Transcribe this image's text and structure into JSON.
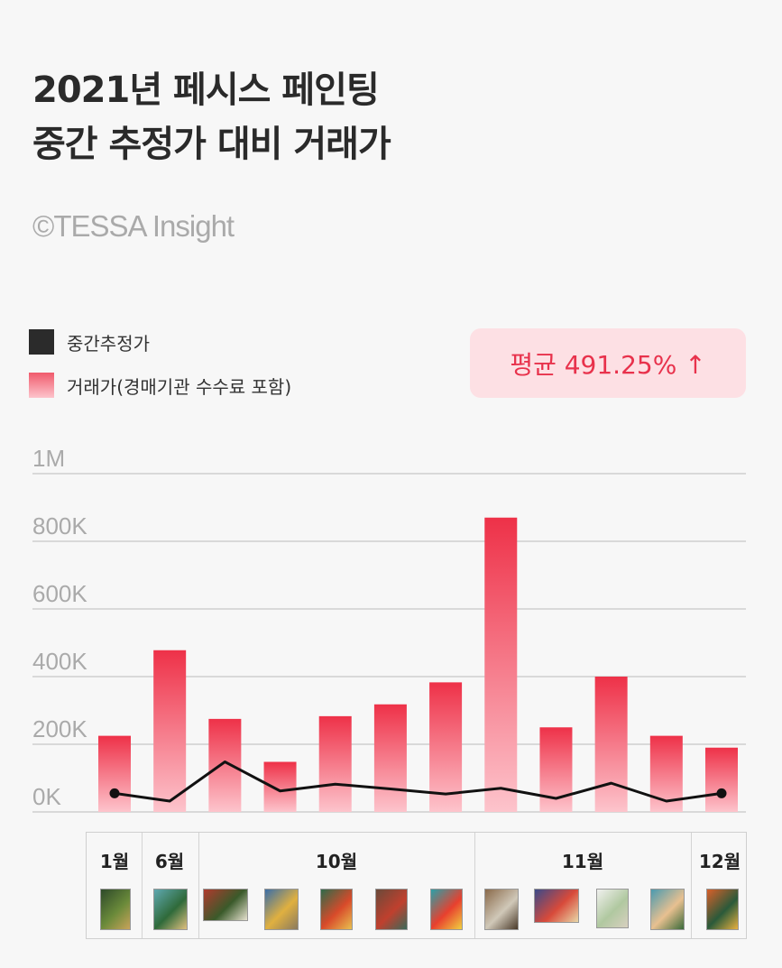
{
  "header": {
    "title_line1": "2021년 페시스 페인팅",
    "title_line2": "중간 추정가 대비 거래가",
    "copyright": "©TESSA Insight"
  },
  "legend": {
    "estimate_label": "중간추정가",
    "price_label": "거래가(경매기관 수수료 포함)"
  },
  "average_badge": "평균 491.25% ↑",
  "colors": {
    "bar_top": "#ee3148",
    "bar_bottom": "#fdc4cc",
    "line": "#111111",
    "badge_bg": "#fde0e4",
    "badge_text": "#e8324c",
    "grid": "#d9d9d9"
  },
  "chart_data": {
    "type": "bar",
    "y_tick_labels": [
      "0K",
      "200K",
      "400K",
      "600K",
      "800K",
      "1M"
    ],
    "ylim": [
      0,
      1000000
    ],
    "series": [
      {
        "name": "거래가(경매기관 수수료 포함)",
        "type": "bar",
        "values": [
          225000,
          478000,
          275000,
          148000,
          283000,
          318000,
          383000,
          870000,
          250000,
          400000,
          225000,
          190000
        ]
      },
      {
        "name": "중간추정가",
        "type": "line",
        "values": [
          55000,
          32000,
          148000,
          62000,
          82000,
          68000,
          53000,
          70000,
          40000,
          85000,
          32000,
          55000
        ]
      }
    ],
    "grid": true
  },
  "months": [
    "1월",
    "6월",
    "10월",
    "11월",
    "12월"
  ],
  "thumbnails": [
    {
      "icon": "painting-thumbnail",
      "colors": [
        "#2e4a2a",
        "#6a8a3a",
        "#c9a35a"
      ]
    },
    {
      "icon": "painting-thumbnail",
      "colors": [
        "#5fa8b0",
        "#2f6a3a",
        "#e0c080"
      ]
    },
    {
      "icon": "painting-thumbnail",
      "colors": [
        "#b03a2e",
        "#3a5a2a",
        "#e7e2d0"
      ]
    },
    {
      "icon": "painting-thumbnail",
      "colors": [
        "#3a6ea8",
        "#e0b040",
        "#8a7a60"
      ]
    },
    {
      "icon": "painting-thumbnail",
      "colors": [
        "#2e6a4a",
        "#d84a2a",
        "#e8c050"
      ]
    },
    {
      "icon": "painting-thumbnail",
      "colors": [
        "#6a4a3a",
        "#c0402e",
        "#3a6a5a"
      ]
    },
    {
      "icon": "painting-thumbnail",
      "colors": [
        "#2aa0a8",
        "#e8402e",
        "#f0d040"
      ]
    },
    {
      "icon": "painting-thumbnail",
      "colors": [
        "#8a6a4a",
        "#d0c8b8",
        "#4a3a2a"
      ]
    },
    {
      "icon": "painting-thumbnail",
      "colors": [
        "#3a4a8a",
        "#d84a3a",
        "#e8d8a8"
      ]
    },
    {
      "icon": "painting-thumbnail",
      "colors": [
        "#f0f0ee",
        "#b0c8a0",
        "#d8d0c0"
      ]
    },
    {
      "icon": "painting-thumbnail",
      "colors": [
        "#4a9ab0",
        "#e8c090",
        "#3a6a3a"
      ]
    },
    {
      "icon": "painting-thumbnail",
      "colors": [
        "#d8602a",
        "#2a5a3a",
        "#e8b040"
      ]
    }
  ]
}
